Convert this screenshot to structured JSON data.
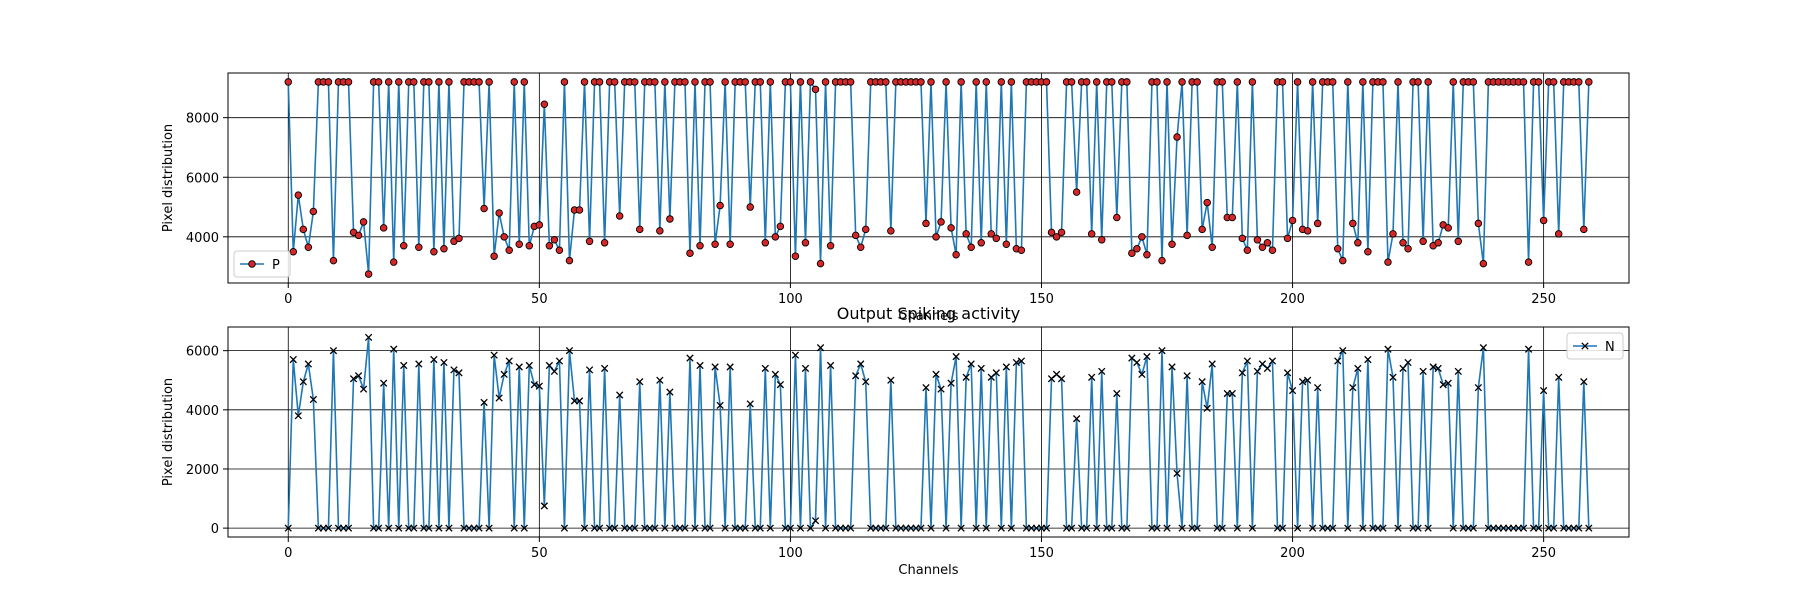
{
  "figure": {
    "title": "Output Spiking activity"
  },
  "colors": {
    "line": "#1f77b4",
    "p_marker_fill": "#d62728",
    "marker_edge": "#000000",
    "grid": "#000000",
    "background": "#ffffff"
  },
  "chart_data": [
    {
      "type": "line",
      "title": "",
      "xlabel": "Channels",
      "ylabel": "Pixel distribution",
      "xlim": [
        -12,
        267
      ],
      "ylim": [
        2450,
        9500
      ],
      "xticks": [
        0,
        50,
        100,
        150,
        200,
        250
      ],
      "yticks": [
        4000,
        6000,
        8000
      ],
      "grid": true,
      "legend_position": "lower-left",
      "series": [
        {
          "name": "P",
          "marker": "circle",
          "values": [
            9200,
            3500,
            5400,
            4250,
            3650,
            4850,
            9200,
            9200,
            9200,
            3200,
            9200,
            9200,
            9200,
            4150,
            4050,
            4500,
            2750,
            9200,
            9200,
            4300,
            9200,
            3150,
            9200,
            3700,
            9200,
            9200,
            3650,
            9200,
            9200,
            3500,
            9200,
            3600,
            9200,
            3850,
            3950,
            9200,
            9200,
            9200,
            9200,
            4950,
            9200,
            3350,
            4800,
            4000,
            3550,
            9200,
            3750,
            9200,
            3700,
            4350,
            4400,
            8450,
            3700,
            3900,
            3550,
            9200,
            3200,
            4900,
            4900,
            9200,
            3850,
            9200,
            9200,
            3800,
            9200,
            9200,
            4700,
            9200,
            9200,
            9200,
            4250,
            9200,
            9200,
            9200,
            4200,
            9200,
            4600,
            9200,
            9200,
            9200,
            3450,
            9200,
            3700,
            9200,
            9200,
            3750,
            5050,
            9200,
            3750,
            9200,
            9200,
            9200,
            5000,
            9200,
            9200,
            3800,
            9200,
            4000,
            4350,
            9200,
            9200,
            3350,
            9200,
            3800,
            9200,
            8950,
            3100,
            9200,
            3700,
            9200,
            9200,
            9200,
            9200,
            4050,
            3650,
            4250,
            9200,
            9200,
            9200,
            9200,
            4200,
            9200,
            9200,
            9200,
            9200,
            9200,
            9200,
            4450,
            9200,
            4000,
            4500,
            9200,
            4300,
            3400,
            9200,
            4100,
            3650,
            9200,
            3800,
            9200,
            4100,
            3950,
            9200,
            3750,
            9200,
            3600,
            3550,
            9200,
            9200,
            9200,
            9200,
            9200,
            4150,
            4000,
            4150,
            9200,
            9200,
            5500,
            9200,
            9200,
            4100,
            9200,
            3900,
            9200,
            9200,
            4650,
            9200,
            9200,
            3450,
            3600,
            4000,
            3400,
            9200,
            9200,
            3200,
            9200,
            3750,
            7350,
            9200,
            4050,
            9200,
            9200,
            4250,
            5150,
            3650,
            9200,
            9200,
            4650,
            4650,
            9200,
            3950,
            3550,
            9200,
            3900,
            3650,
            3800,
            3550,
            9200,
            9200,
            3950,
            4550,
            9200,
            4250,
            4200,
            9200,
            4450,
            9200,
            9200,
            9200,
            3600,
            3200,
            9200,
            4450,
            3800,
            9200,
            3500,
            9200,
            9200,
            9200,
            3150,
            4100,
            9200,
            3800,
            3600,
            9200,
            9200,
            3850,
            9200,
            3700,
            3800,
            4400,
            4300,
            9200,
            3850,
            9200,
            9200,
            9200,
            4450,
            3100,
            9200,
            9200,
            9200,
            9200,
            9200,
            9200,
            9200,
            9200,
            3150,
            9200,
            9200,
            4550,
            9200,
            9200,
            4100,
            9200,
            9200,
            9200,
            9200,
            4250,
            9200
          ]
        }
      ]
    },
    {
      "type": "line",
      "title": "Output Spiking activity",
      "xlabel": "Channels",
      "ylabel": "Pixel distribution",
      "xlim": [
        -12,
        267
      ],
      "ylim": [
        -300,
        6800
      ],
      "xticks": [
        0,
        50,
        100,
        150,
        200,
        250
      ],
      "yticks": [
        0,
        2000,
        4000,
        6000
      ],
      "grid": true,
      "legend_position": "upper-right",
      "series": [
        {
          "name": "N",
          "marker": "x",
          "values": [
            0,
            5700,
            3800,
            4950,
            5550,
            4350,
            0,
            0,
            0,
            6000,
            0,
            0,
            0,
            5050,
            5150,
            4700,
            6450,
            0,
            0,
            4900,
            0,
            6050,
            0,
            5500,
            0,
            0,
            5550,
            0,
            0,
            5700,
            0,
            5600,
            0,
            5350,
            5250,
            0,
            0,
            0,
            0,
            4250,
            0,
            5850,
            4400,
            5200,
            5650,
            0,
            5450,
            0,
            5500,
            4850,
            4800,
            750,
            5500,
            5300,
            5650,
            0,
            6000,
            4300,
            4300,
            0,
            5350,
            0,
            0,
            5400,
            0,
            0,
            4500,
            0,
            0,
            0,
            4950,
            0,
            0,
            0,
            5000,
            0,
            4600,
            0,
            0,
            0,
            5750,
            0,
            5500,
            0,
            0,
            5450,
            4150,
            0,
            5450,
            0,
            0,
            0,
            4200,
            0,
            0,
            5400,
            0,
            5200,
            4850,
            0,
            0,
            5850,
            0,
            5400,
            0,
            250,
            6100,
            0,
            5500,
            0,
            0,
            0,
            0,
            5150,
            5550,
            4950,
            0,
            0,
            0,
            0,
            5000,
            0,
            0,
            0,
            0,
            0,
            0,
            4750,
            0,
            5200,
            4700,
            0,
            4900,
            5800,
            0,
            5100,
            5550,
            0,
            5400,
            0,
            5100,
            5250,
            0,
            5450,
            0,
            5600,
            5650,
            0,
            0,
            0,
            0,
            0,
            5050,
            5200,
            5050,
            0,
            0,
            3700,
            0,
            0,
            5100,
            0,
            5300,
            0,
            0,
            4550,
            0,
            0,
            5750,
            5600,
            5200,
            5800,
            0,
            0,
            6000,
            0,
            5450,
            1850,
            0,
            5150,
            0,
            0,
            4950,
            4050,
            5550,
            0,
            0,
            4550,
            4550,
            0,
            5250,
            5650,
            0,
            5300,
            5550,
            5400,
            5650,
            0,
            0,
            5250,
            4650,
            0,
            4950,
            5000,
            0,
            4750,
            0,
            0,
            0,
            5650,
            6000,
            0,
            4750,
            5400,
            0,
            5700,
            0,
            0,
            0,
            6050,
            5100,
            0,
            5400,
            5600,
            0,
            0,
            5300,
            0,
            5450,
            5400,
            4850,
            4900,
            0,
            5300,
            0,
            0,
            0,
            4750,
            6100,
            0,
            0,
            0,
            0,
            0,
            0,
            0,
            0,
            6050,
            0,
            0,
            4650,
            0,
            0,
            5100,
            0,
            0,
            0,
            0,
            4950,
            0
          ]
        }
      ]
    }
  ]
}
